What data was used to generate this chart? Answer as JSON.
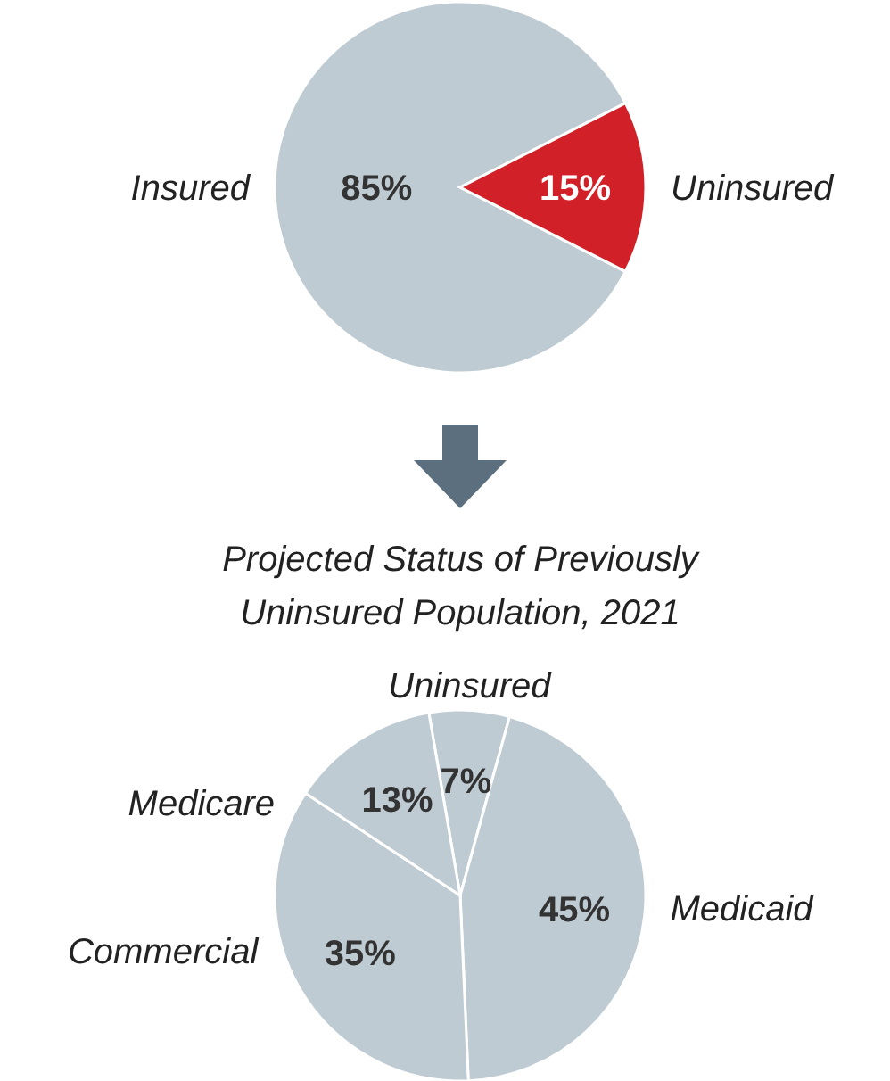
{
  "chart_data": [
    {
      "type": "pie",
      "categories": [
        "Insured",
        "Uninsured"
      ],
      "values": [
        85,
        15
      ],
      "colors": [
        "#bfcbd3",
        "#d12027"
      ],
      "value_labels": [
        "85%",
        "15%"
      ]
    },
    {
      "type": "pie",
      "title": "Projected Status of Previously Uninsured Population, 2021",
      "categories": [
        "Uninsured",
        "Medicaid",
        "Commercial",
        "Medicare"
      ],
      "values": [
        7,
        45,
        35,
        13
      ],
      "colors": [
        "#bfcbd3",
        "#bfcbd3",
        "#bfcbd3",
        "#bfcbd3"
      ],
      "value_labels": [
        "7%",
        "45%",
        "35%",
        "13%"
      ]
    }
  ]
}
